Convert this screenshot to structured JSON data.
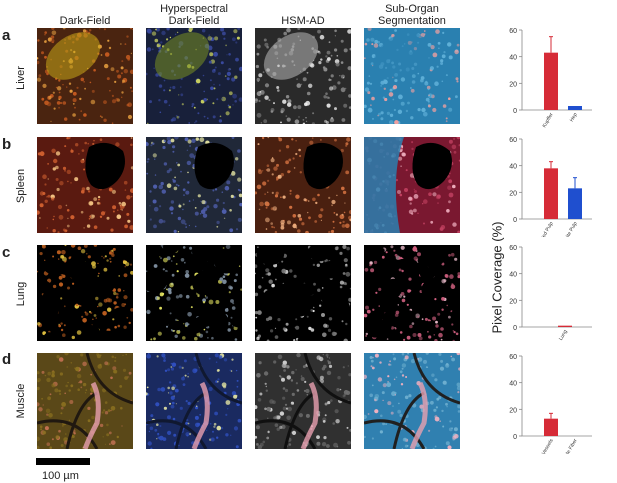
{
  "columns": [
    "Dark-Field",
    "Hyperspectral\nDark-Field",
    "HSM-AD",
    "Sub-Organ\nSegmentation"
  ],
  "rows": [
    {
      "letter": "a",
      "tissue": "Liver"
    },
    {
      "letter": "b",
      "tissue": "Spleen"
    },
    {
      "letter": "c",
      "tissue": "Lung"
    },
    {
      "letter": "d",
      "tissue": "Muscle"
    }
  ],
  "scale_bar": {
    "label": "100 µm"
  },
  "y_axis_label": "Pixel Coverage (%)",
  "colors": {
    "red": "#d62b37",
    "blue": "#1f4fcf"
  },
  "chart_data": [
    {
      "type": "bar",
      "categories": [
        "Kupffer",
        "Hep"
      ],
      "values": [
        43,
        3
      ],
      "errors": [
        12,
        0
      ],
      "colors": [
        "red",
        "blue"
      ],
      "ylim": [
        0,
        60
      ],
      "yticks": [
        0,
        20,
        40,
        60
      ]
    },
    {
      "type": "bar",
      "categories": [
        "Red Pulp",
        "White Pulp"
      ],
      "values": [
        38,
        23
      ],
      "errors": [
        5,
        8
      ],
      "colors": [
        "red",
        "blue"
      ],
      "ylim": [
        0,
        60
      ],
      "yticks": [
        0,
        20,
        40,
        60
      ]
    },
    {
      "type": "bar",
      "categories": [
        "Lung"
      ],
      "values": [
        1
      ],
      "errors": [
        0
      ],
      "colors": [
        "red"
      ],
      "ylim": [
        0,
        60
      ],
      "yticks": [
        0,
        20,
        40,
        60
      ]
    },
    {
      "type": "bar",
      "categories": [
        "Vessels",
        "Muscle Fiber"
      ],
      "values": [
        13,
        0
      ],
      "errors": [
        4,
        0
      ],
      "colors": [
        "red",
        "blue"
      ],
      "ylim": [
        0,
        60
      ],
      "yticks": [
        0,
        20,
        40,
        60
      ]
    }
  ]
}
